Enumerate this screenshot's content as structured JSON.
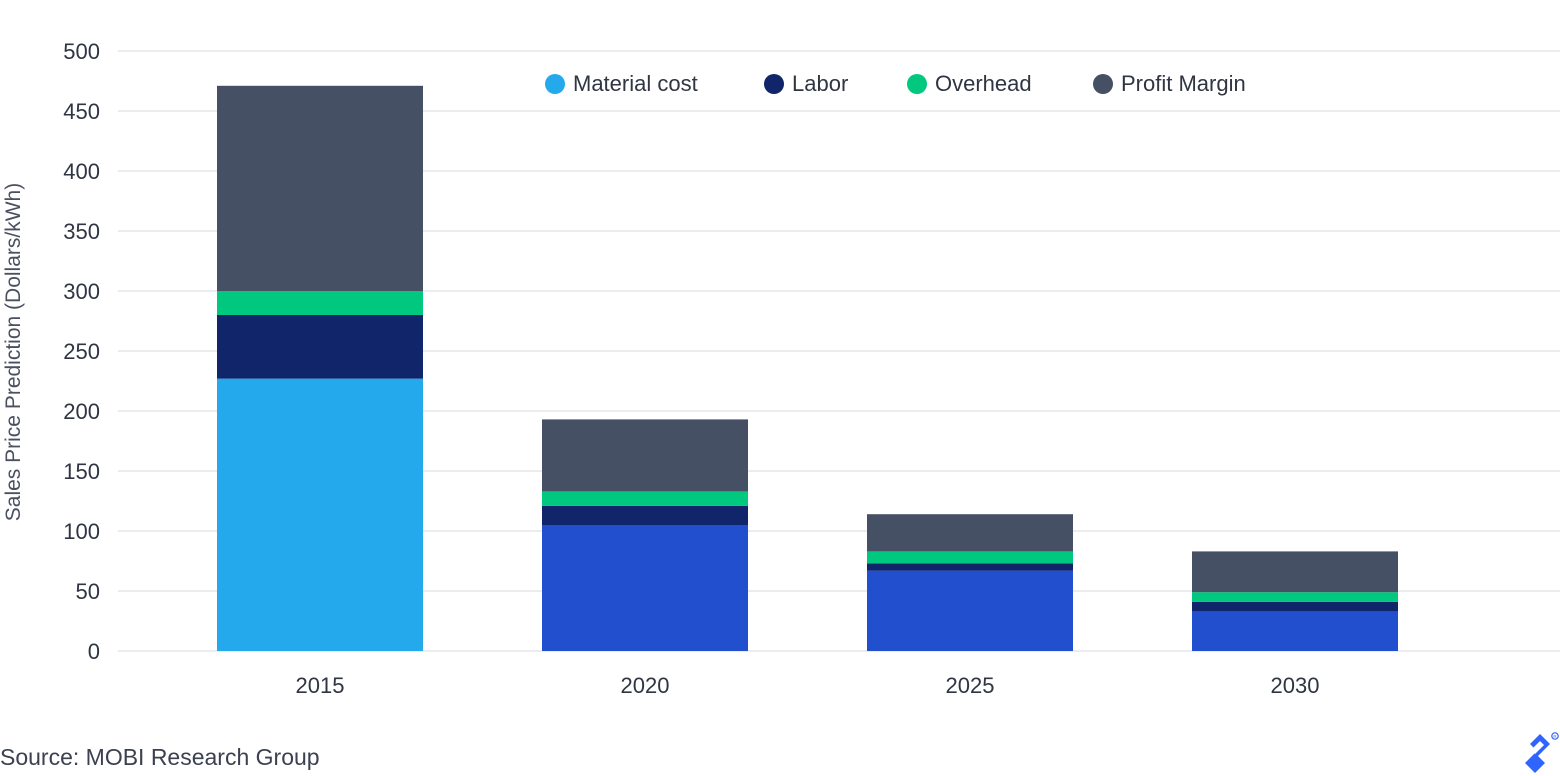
{
  "chart_data": {
    "type": "bar",
    "stacked": true,
    "categories": [
      "2015",
      "2020",
      "2025",
      "2030"
    ],
    "series": [
      {
        "name": "Material cost",
        "color": "#23a9ec",
        "values": [
          227,
          105,
          67,
          33
        ]
      },
      {
        "name": "Labor",
        "color": "#11256b",
        "values": [
          53,
          16,
          6,
          8
        ]
      },
      {
        "name": "Overhead",
        "color": "#00c87f",
        "values": [
          20,
          12,
          10,
          8
        ]
      },
      {
        "name": "Profit Margin",
        "color": "#465064",
        "values": [
          171,
          60,
          31,
          34
        ]
      }
    ],
    "bar_overrides": {
      "Material cost": {
        "color_from_index_1": "#214fce"
      }
    },
    "ylabel": "Sales Price Prediction (Dollars/kWh)",
    "xlabel": "",
    "ylim": [
      0,
      500
    ],
    "yticks": [
      0,
      50,
      100,
      150,
      200,
      250,
      300,
      350,
      400,
      450,
      500
    ],
    "grid": true,
    "legend_position": "top-center"
  },
  "source_text": "Source: MOBI Research Group",
  "logo_icon": "toptal-logo-icon"
}
